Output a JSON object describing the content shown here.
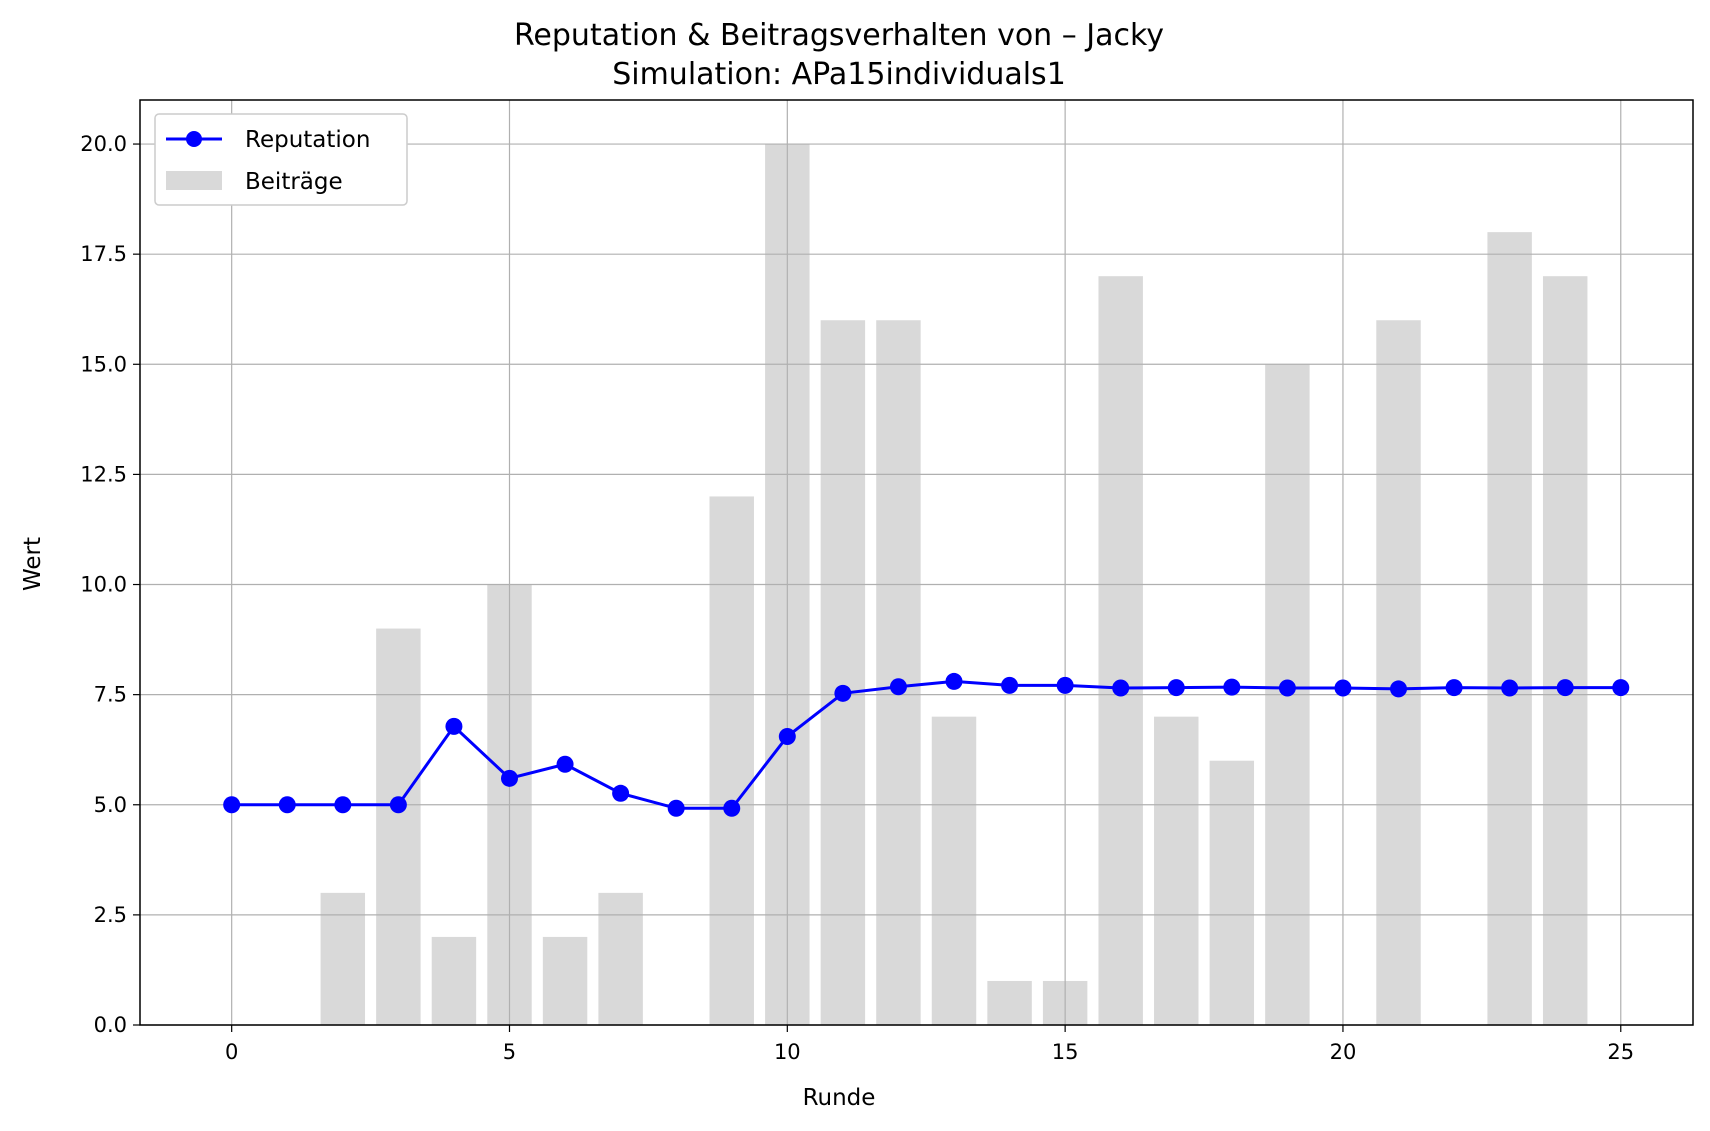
{
  "chart_data": {
    "type": "bar+line",
    "title": "Reputation & Beitragsverhalten von – Jacky",
    "subtitle": "Simulation: APa15individuals1",
    "xlabel": "Runde",
    "ylabel": "Wert",
    "xlim": [
      -1.65,
      26.3
    ],
    "ylim": [
      0,
      21
    ],
    "xticks": [
      0,
      5,
      10,
      15,
      20,
      25
    ],
    "yticks": [
      0.0,
      2.5,
      5.0,
      7.5,
      10.0,
      12.5,
      15.0,
      17.5,
      20.0
    ],
    "grid": true,
    "legend_position": "top-left",
    "x": [
      0,
      1,
      2,
      3,
      4,
      5,
      6,
      7,
      8,
      9,
      10,
      11,
      12,
      13,
      14,
      15,
      16,
      17,
      18,
      19,
      20,
      21,
      22,
      23,
      24,
      25
    ],
    "series": [
      {
        "name": "Reputation",
        "kind": "line",
        "marker": "circle",
        "color": "#0000ff",
        "values": [
          5.0,
          5.0,
          5.0,
          5.0,
          6.78,
          5.6,
          5.92,
          5.26,
          4.92,
          4.92,
          6.55,
          7.53,
          7.68,
          7.8,
          7.71,
          7.71,
          7.65,
          7.66,
          7.67,
          7.65,
          7.65,
          7.63,
          7.66,
          7.65,
          7.66,
          7.66
        ]
      },
      {
        "name": "Beiträge",
        "kind": "bar",
        "color": "#d9d9d9",
        "values": [
          0,
          0,
          3,
          9,
          2,
          10,
          2,
          3,
          0,
          12,
          20,
          16,
          16,
          7,
          1,
          1,
          17,
          7,
          6,
          15,
          0,
          16,
          0,
          18,
          17,
          0
        ]
      }
    ]
  }
}
